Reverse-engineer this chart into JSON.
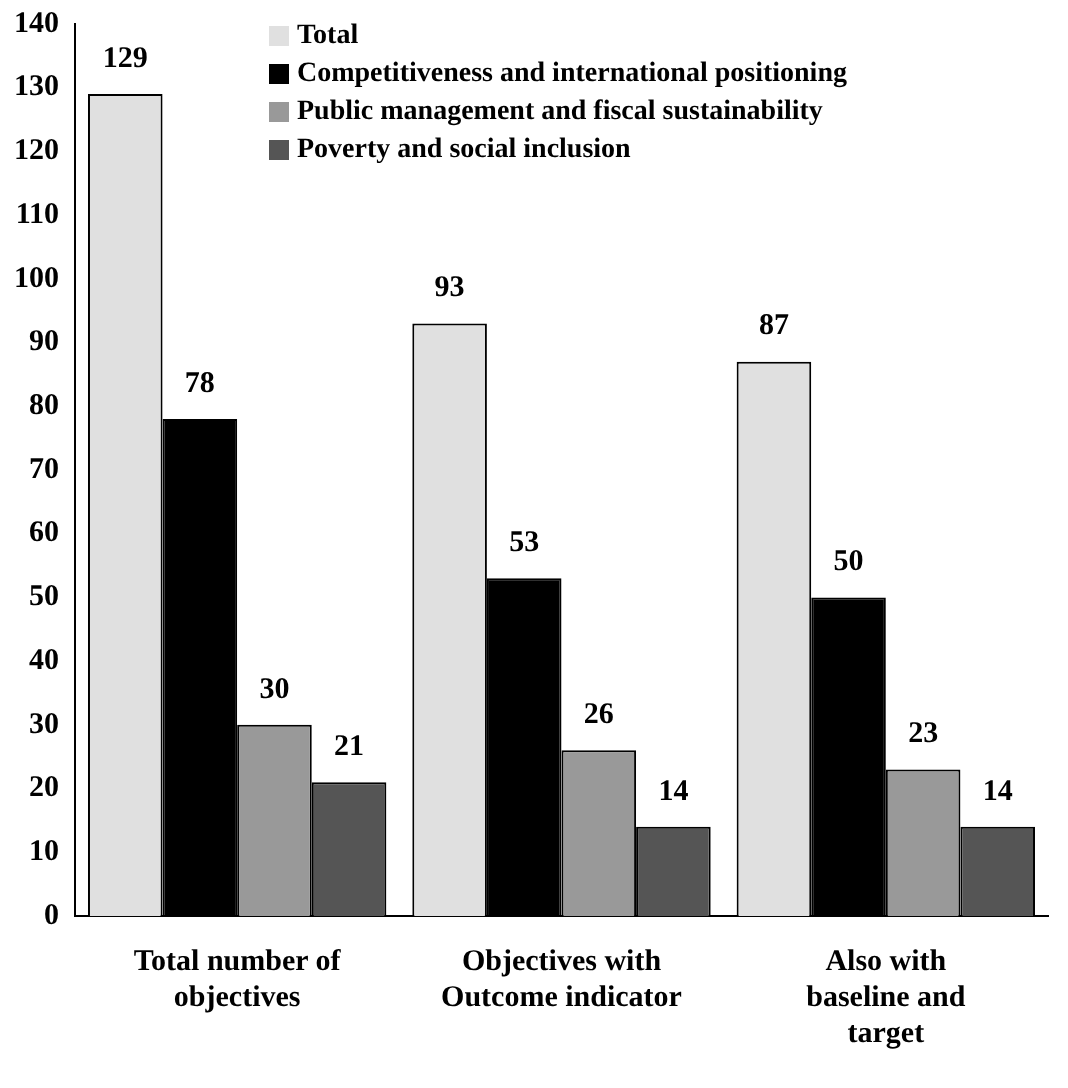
{
  "chart_data": {
    "type": "bar",
    "categories": [
      "Total number of objectives",
      "Objectives with Outcome indicator",
      "Also with baseline and target"
    ],
    "series": [
      {
        "name": "Total",
        "color": "#e0e0e0",
        "values": [
          129,
          93,
          87
        ]
      },
      {
        "name": "Competitiveness and international positioning",
        "color": "#000000",
        "values": [
          78,
          53,
          50
        ]
      },
      {
        "name": "Public management and fiscal sustainability",
        "color": "#999999",
        "values": [
          30,
          26,
          23
        ]
      },
      {
        "name": "Poverty and social inclusion",
        "color": "#555555",
        "values": [
          21,
          14,
          14
        ]
      }
    ],
    "ylim": [
      0,
      140
    ],
    "yticks": [
      0,
      10,
      20,
      30,
      40,
      50,
      60,
      70,
      80,
      90,
      100,
      110,
      120,
      130,
      140
    ],
    "grid": false,
    "legend": "top right",
    "data_labels": true
  }
}
